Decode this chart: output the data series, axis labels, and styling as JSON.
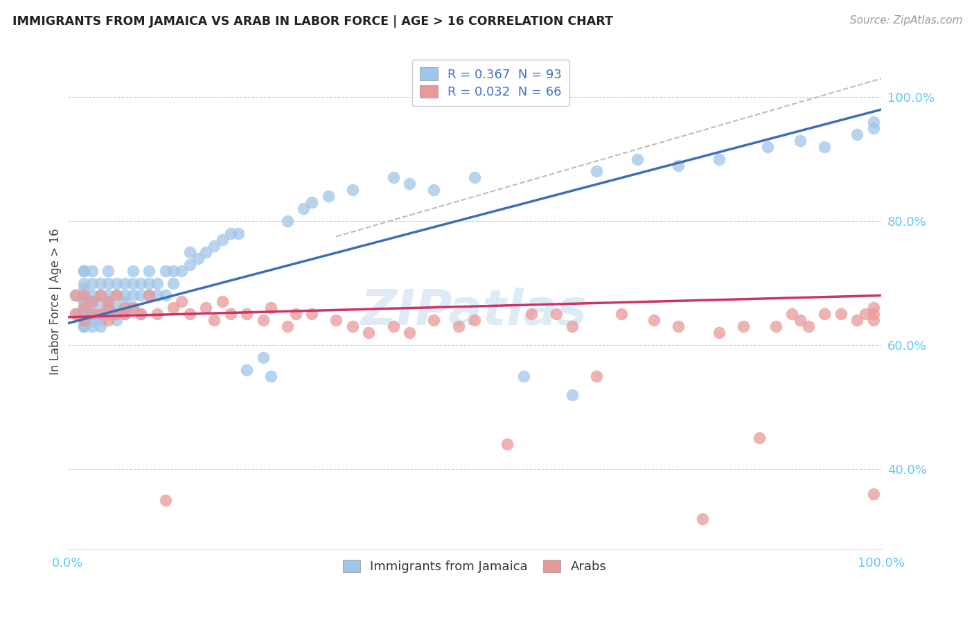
{
  "title": "IMMIGRANTS FROM JAMAICA VS ARAB IN LABOR FORCE | AGE > 16 CORRELATION CHART",
  "source": "Source: ZipAtlas.com",
  "ylabel": "In Labor Force | Age > 16",
  "legend_r1": "R = 0.367  N = 93",
  "legend_r2": "R = 0.032  N = 66",
  "legend_label1": "Immigrants from Jamaica",
  "legend_label2": "Arabs",
  "color_jamaica": "#9fc5e8",
  "color_arab": "#ea9999",
  "trendline_color_jamaica": "#3d6eb5",
  "trendline_color_arab": "#cc3366",
  "trendline_dash_color": "#bbbbbb",
  "watermark": "ZIPatlas",
  "background_color": "#ffffff",
  "grid_color": "#cccccc",
  "tick_color": "#5bc8f5",
  "xlim": [
    0.0,
    1.0
  ],
  "ylim": [
    0.27,
    1.07
  ],
  "jamaica_trendline": [
    0.0,
    0.635,
    1.0,
    0.98
  ],
  "arab_trendline": [
    0.0,
    0.645,
    1.0,
    0.68
  ],
  "dash_line": [
    0.33,
    0.775,
    1.0,
    1.03
  ],
  "jamaica_x": [
    0.01,
    0.01,
    0.02,
    0.02,
    0.02,
    0.02,
    0.02,
    0.02,
    0.02,
    0.02,
    0.02,
    0.02,
    0.02,
    0.02,
    0.02,
    0.03,
    0.03,
    0.03,
    0.03,
    0.03,
    0.03,
    0.03,
    0.03,
    0.04,
    0.04,
    0.04,
    0.04,
    0.04,
    0.04,
    0.05,
    0.05,
    0.05,
    0.05,
    0.05,
    0.05,
    0.06,
    0.06,
    0.06,
    0.06,
    0.06,
    0.07,
    0.07,
    0.07,
    0.07,
    0.08,
    0.08,
    0.08,
    0.08,
    0.09,
    0.09,
    0.09,
    0.1,
    0.1,
    0.1,
    0.11,
    0.11,
    0.12,
    0.12,
    0.13,
    0.13,
    0.14,
    0.15,
    0.15,
    0.16,
    0.17,
    0.18,
    0.19,
    0.2,
    0.21,
    0.22,
    0.24,
    0.25,
    0.27,
    0.29,
    0.3,
    0.32,
    0.35,
    0.4,
    0.42,
    0.45,
    0.5,
    0.56,
    0.62,
    0.65,
    0.7,
    0.75,
    0.8,
    0.86,
    0.9,
    0.93,
    0.97,
    0.99,
    0.99
  ],
  "jamaica_y": [
    0.68,
    0.65,
    0.72,
    0.69,
    0.67,
    0.66,
    0.65,
    0.64,
    0.63,
    0.68,
    0.7,
    0.72,
    0.67,
    0.65,
    0.63,
    0.7,
    0.68,
    0.67,
    0.65,
    0.64,
    0.63,
    0.66,
    0.72,
    0.68,
    0.67,
    0.65,
    0.7,
    0.64,
    0.63,
    0.7,
    0.68,
    0.66,
    0.65,
    0.67,
    0.72,
    0.68,
    0.7,
    0.65,
    0.64,
    0.66,
    0.68,
    0.7,
    0.67,
    0.65,
    0.7,
    0.68,
    0.66,
    0.72,
    0.68,
    0.7,
    0.65,
    0.72,
    0.68,
    0.7,
    0.7,
    0.68,
    0.72,
    0.68,
    0.72,
    0.7,
    0.72,
    0.75,
    0.73,
    0.74,
    0.75,
    0.76,
    0.77,
    0.78,
    0.78,
    0.56,
    0.58,
    0.55,
    0.8,
    0.82,
    0.83,
    0.84,
    0.85,
    0.87,
    0.86,
    0.85,
    0.87,
    0.55,
    0.52,
    0.88,
    0.9,
    0.89,
    0.9,
    0.92,
    0.93,
    0.92,
    0.94,
    0.95,
    0.96
  ],
  "arab_x": [
    0.01,
    0.01,
    0.02,
    0.02,
    0.02,
    0.03,
    0.03,
    0.04,
    0.04,
    0.05,
    0.05,
    0.05,
    0.06,
    0.06,
    0.07,
    0.07,
    0.08,
    0.09,
    0.1,
    0.11,
    0.12,
    0.13,
    0.14,
    0.15,
    0.17,
    0.18,
    0.19,
    0.2,
    0.22,
    0.24,
    0.25,
    0.27,
    0.28,
    0.3,
    0.33,
    0.35,
    0.37,
    0.4,
    0.42,
    0.45,
    0.48,
    0.5,
    0.54,
    0.57,
    0.6,
    0.62,
    0.65,
    0.68,
    0.72,
    0.75,
    0.78,
    0.8,
    0.83,
    0.85,
    0.87,
    0.89,
    0.9,
    0.91,
    0.93,
    0.95,
    0.97,
    0.98,
    0.99,
    0.99,
    0.99,
    0.99
  ],
  "arab_y": [
    0.68,
    0.65,
    0.66,
    0.64,
    0.68,
    0.65,
    0.67,
    0.68,
    0.65,
    0.66,
    0.64,
    0.67,
    0.65,
    0.68,
    0.66,
    0.65,
    0.66,
    0.65,
    0.68,
    0.65,
    0.35,
    0.66,
    0.67,
    0.65,
    0.66,
    0.64,
    0.67,
    0.65,
    0.65,
    0.64,
    0.66,
    0.63,
    0.65,
    0.65,
    0.64,
    0.63,
    0.62,
    0.63,
    0.62,
    0.64,
    0.63,
    0.64,
    0.44,
    0.65,
    0.65,
    0.63,
    0.55,
    0.65,
    0.64,
    0.63,
    0.32,
    0.62,
    0.63,
    0.45,
    0.63,
    0.65,
    0.64,
    0.63,
    0.65,
    0.65,
    0.64,
    0.65,
    0.36,
    0.66,
    0.65,
    0.64
  ]
}
